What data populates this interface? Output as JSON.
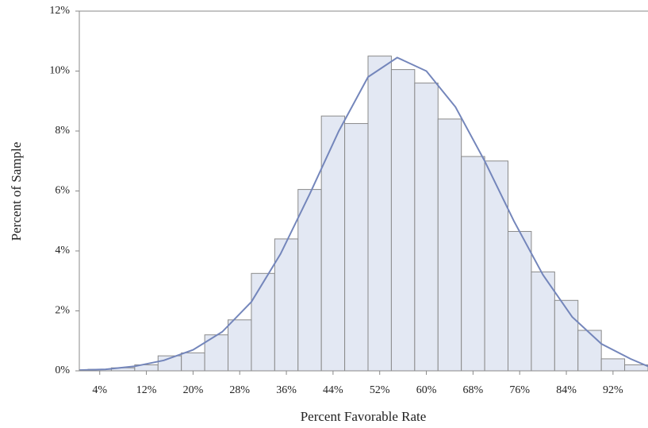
{
  "chart_data": {
    "type": "histogram",
    "x_label": "Percent Favorable Rate",
    "y_label": "Percent of Sample",
    "bins": [
      2,
      6,
      10,
      14,
      18,
      22,
      26,
      30,
      34,
      38,
      42,
      46,
      50,
      54,
      58,
      62,
      66,
      70,
      74,
      78,
      82,
      86,
      90,
      94,
      98
    ],
    "values": [
      0.05,
      0.1,
      0.2,
      0.5,
      0.6,
      1.2,
      1.7,
      3.25,
      4.4,
      6.05,
      8.5,
      8.25,
      10.5,
      10.05,
      9.6,
      8.4,
      7.15,
      7.0,
      4.65,
      3.3,
      2.35,
      1.35,
      0.4,
      0.2
    ],
    "color": "#e3e8f3",
    "edge_color": "#8a8a8a",
    "curve": {
      "x": [
        0,
        5,
        10,
        15,
        20,
        25,
        30,
        35,
        40,
        45,
        50,
        55,
        60,
        65,
        70,
        75,
        80,
        85,
        90,
        95,
        98
      ],
      "y": [
        0.02,
        0.05,
        0.15,
        0.35,
        0.7,
        1.3,
        2.3,
        3.9,
        5.9,
        8.0,
        9.8,
        10.45,
        10.0,
        8.8,
        7.0,
        5.0,
        3.2,
        1.8,
        0.9,
        0.4,
        0.15
      ],
      "color": "#7486bb"
    },
    "xlim": [
      0.5,
      98
    ],
    "ylim": [
      0,
      12
    ],
    "xticks": [
      {
        "value": 4,
        "label": "4%"
      },
      {
        "value": 12,
        "label": "12%"
      },
      {
        "value": 20,
        "label": "20%"
      },
      {
        "value": 28,
        "label": "28%"
      },
      {
        "value": 36,
        "label": "36%"
      },
      {
        "value": 44,
        "label": "44%"
      },
      {
        "value": 52,
        "label": "52%"
      },
      {
        "value": 60,
        "label": "60%"
      },
      {
        "value": 68,
        "label": "68%"
      },
      {
        "value": 76,
        "label": "76%"
      },
      {
        "value": 84,
        "label": "84%"
      },
      {
        "value": 92,
        "label": "92%"
      }
    ],
    "yticks": [
      {
        "value": 0,
        "label": "0%"
      },
      {
        "value": 2,
        "label": "2%"
      },
      {
        "value": 4,
        "label": "4%"
      },
      {
        "value": 6,
        "label": "6%"
      },
      {
        "value": 8,
        "label": "8%"
      },
      {
        "value": 10,
        "label": "10%"
      },
      {
        "value": 12,
        "label": "12%"
      }
    ]
  }
}
